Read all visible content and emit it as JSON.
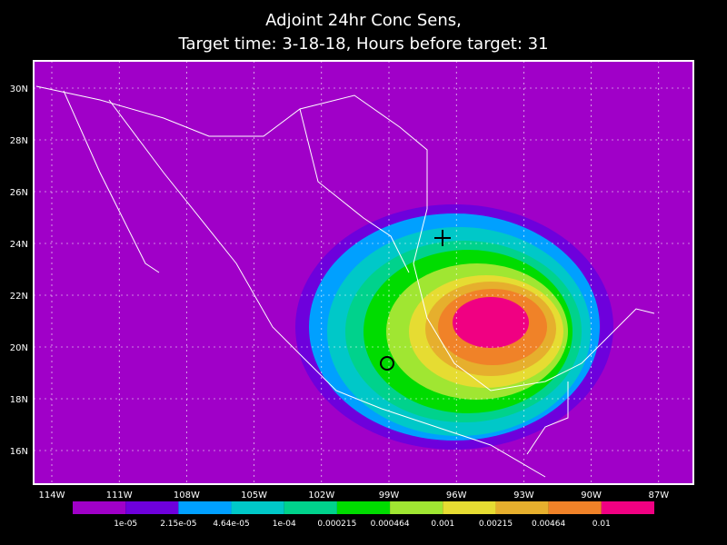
{
  "title": [
    "Adjoint 24hr Conc Sens,",
    "Target time: 3-18-18, Hours before target: 31"
  ],
  "lat_labels": [
    "30N",
    "28N",
    "26N",
    "24N",
    "22N",
    "20N",
    "18N",
    "16N"
  ],
  "lon_labels": [
    "114W",
    "111W",
    "108W",
    "105W",
    "102W",
    "99W",
    "96W",
    "93W",
    "90W",
    "87W"
  ],
  "colorbar": {
    "labels": [
      "1e-05",
      "2.15e-05",
      "4.64e-05",
      "1e-04",
      "0.000215",
      "0.000464",
      "0.001",
      "0.00215",
      "0.00464",
      "0.01"
    ],
    "colors": [
      "#a000c8",
      "#6e00dc",
      "#00a0ff",
      "#00c8c8",
      "#00d28c",
      "#00dc00",
      "#a0e632",
      "#e6dc32",
      "#e6af2d",
      "#f08228",
      "#f00082"
    ]
  }
}
